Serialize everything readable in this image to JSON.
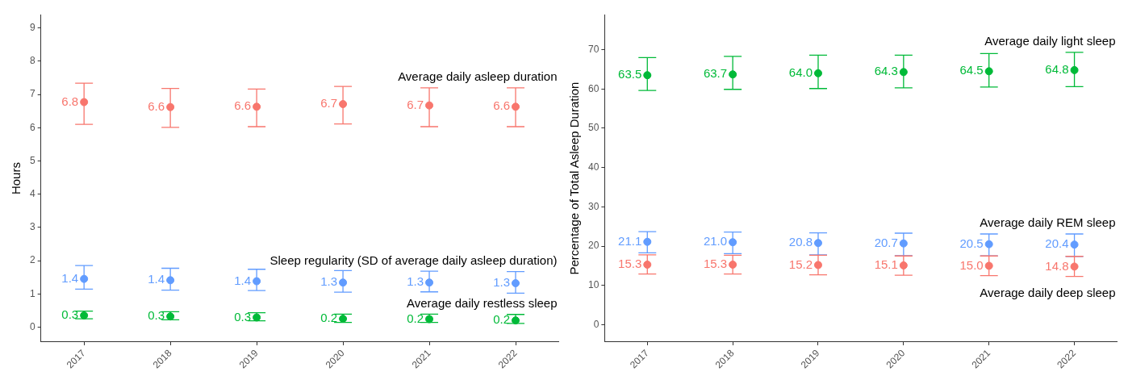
{
  "chart_data": [
    {
      "type": "scatter",
      "ylabel": "Hours",
      "categories": [
        "2017",
        "2018",
        "2019",
        "2020",
        "2021",
        "2022"
      ],
      "ylim": [
        -0.45,
        9.4
      ],
      "yticks": [
        0,
        1,
        2,
        3,
        4,
        5,
        6,
        7,
        8,
        9
      ],
      "grid": false,
      "legend": false,
      "marker": "circle",
      "series": [
        {
          "name": "Average daily asleep duration",
          "color": "#f8766d",
          "values": [
            6.77,
            6.62,
            6.63,
            6.71,
            6.67,
            6.63
          ],
          "value_labels": [
            "6.8",
            "6.6",
            "6.6",
            "6.7",
            "6.7",
            "6.6"
          ],
          "errors": [
            [
              6.1,
              7.34
            ],
            [
              6.01,
              7.18
            ],
            [
              6.03,
              7.16
            ],
            [
              6.11,
              7.24
            ],
            [
              6.03,
              7.2
            ],
            [
              6.03,
              7.2
            ]
          ]
        },
        {
          "name": "Sleep regularity (SD of average daily asleep duration)",
          "color": "#619cff",
          "values": [
            1.45,
            1.41,
            1.38,
            1.34,
            1.34,
            1.32
          ],
          "value_labels": [
            "1.4",
            "1.4",
            "1.4",
            "1.3",
            "1.3",
            "1.3"
          ],
          "errors": [
            [
              1.14,
              1.85
            ],
            [
              1.11,
              1.77
            ],
            [
              1.1,
              1.74
            ],
            [
              1.05,
              1.7
            ],
            [
              1.06,
              1.68
            ],
            [
              1.02,
              1.67
            ]
          ]
        },
        {
          "name": "Average daily restless sleep",
          "color": "#00ba38",
          "values": [
            0.35,
            0.32,
            0.29,
            0.25,
            0.24,
            0.2
          ],
          "value_labels": [
            "0.3",
            "0.3",
            "0.3",
            "0.2",
            "0.2",
            "0.2"
          ],
          "errors": [
            [
              0.25,
              0.48
            ],
            [
              0.22,
              0.46
            ],
            [
              0.19,
              0.43
            ],
            [
              0.14,
              0.39
            ],
            [
              0.14,
              0.39
            ],
            [
              0.11,
              0.38
            ]
          ]
        }
      ]
    },
    {
      "type": "scatter",
      "ylabel": "Percentage of Total Asleep Duration",
      "categories": [
        "2017",
        "2018",
        "2019",
        "2020",
        "2021",
        "2022"
      ],
      "ylim": [
        -4.4,
        78.9
      ],
      "yticks": [
        0,
        10,
        20,
        30,
        40,
        50,
        60,
        70
      ],
      "grid": false,
      "legend": false,
      "marker": "circle",
      "series": [
        {
          "name": "Average daily light sleep",
          "color": "#00ba38",
          "values": [
            63.5,
            63.7,
            64.0,
            64.3,
            64.5,
            64.8
          ],
          "value_labels": [
            "63.5",
            "63.7",
            "64.0",
            "64.3",
            "64.5",
            "64.8"
          ],
          "errors": [
            [
              59.6,
              68.0
            ],
            [
              59.9,
              68.3
            ],
            [
              60.1,
              68.6
            ],
            [
              60.3,
              68.6
            ],
            [
              60.5,
              69.0
            ],
            [
              60.6,
              69.3
            ]
          ]
        },
        {
          "name": "Average daily REM sleep",
          "color": "#619cff",
          "values": [
            21.1,
            21.0,
            20.8,
            20.7,
            20.5,
            20.4
          ],
          "value_labels": [
            "21.1",
            "21.0",
            "20.8",
            "20.7",
            "20.5",
            "20.4"
          ],
          "errors": [
            [
              18.3,
              23.7
            ],
            [
              18.1,
              23.6
            ],
            [
              17.8,
              23.4
            ],
            [
              17.6,
              23.3
            ],
            [
              17.5,
              23.1
            ],
            [
              17.4,
              23.1
            ]
          ]
        },
        {
          "name": "Average daily deep sleep",
          "color": "#f8766d",
          "values": [
            15.3,
            15.3,
            15.2,
            15.1,
            15.0,
            14.8
          ],
          "value_labels": [
            "15.3",
            "15.3",
            "15.2",
            "15.1",
            "15.0",
            "14.8"
          ],
          "errors": [
            [
              12.9,
              17.8
            ],
            [
              12.9,
              17.7
            ],
            [
              12.7,
              17.7
            ],
            [
              12.6,
              17.5
            ],
            [
              12.5,
              17.5
            ],
            [
              12.3,
              17.4
            ]
          ]
        }
      ]
    }
  ]
}
